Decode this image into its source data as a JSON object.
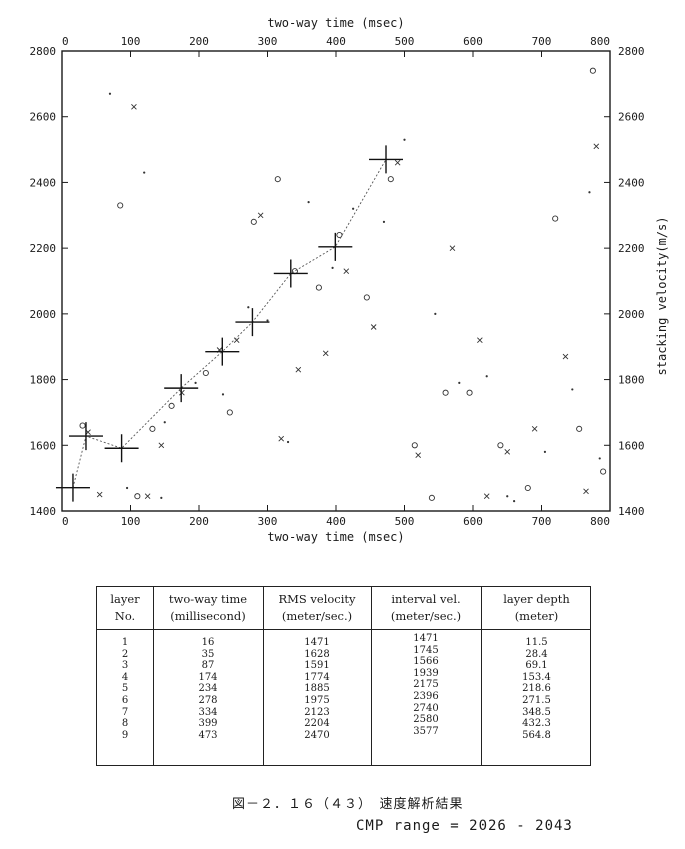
{
  "chart_data": {
    "type": "scatter",
    "xlabel": "two-way time (msec)",
    "ylabel": "stacking velocity(m/s)",
    "xlim": [
      0,
      800
    ],
    "ylim": [
      1400,
      2800
    ],
    "x_ticks": [
      0,
      100,
      200,
      300,
      400,
      500,
      600,
      700,
      800
    ],
    "y_ticks": [
      1400,
      1600,
      1800,
      2000,
      2200,
      2400,
      2600,
      2800
    ],
    "grid": false,
    "picks": {
      "time": [
        16,
        35,
        87,
        174,
        234,
        278,
        334,
        399,
        473
      ],
      "velocity": [
        1471,
        1628,
        1591,
        1774,
        1885,
        1975,
        2123,
        2204,
        2470
      ]
    },
    "semblance_points": [
      [
        30,
        1660
      ],
      [
        38,
        1640
      ],
      [
        70,
        2670
      ],
      [
        85,
        2330
      ],
      [
        105,
        2630
      ],
      [
        120,
        2430
      ],
      [
        132,
        1650
      ],
      [
        145,
        1600
      ],
      [
        150,
        1670
      ],
      [
        160,
        1720
      ],
      [
        175,
        1760
      ],
      [
        195,
        1790
      ],
      [
        210,
        1820
      ],
      [
        230,
        1890
      ],
      [
        235,
        1755
      ],
      [
        245,
        1700
      ],
      [
        255,
        1920
      ],
      [
        272,
        2020
      ],
      [
        280,
        2280
      ],
      [
        290,
        2300
      ],
      [
        300,
        1980
      ],
      [
        315,
        2410
      ],
      [
        320,
        1620
      ],
      [
        330,
        1610
      ],
      [
        340,
        2130
      ],
      [
        345,
        1830
      ],
      [
        360,
        2340
      ],
      [
        375,
        2080
      ],
      [
        385,
        1880
      ],
      [
        395,
        2140
      ],
      [
        405,
        2240
      ],
      [
        415,
        2130
      ],
      [
        425,
        2320
      ],
      [
        445,
        2050
      ],
      [
        455,
        1960
      ],
      [
        470,
        2280
      ],
      [
        480,
        2410
      ],
      [
        490,
        2460
      ],
      [
        500,
        2530
      ],
      [
        515,
        1600
      ],
      [
        520,
        1570
      ],
      [
        545,
        2000
      ],
      [
        560,
        1760
      ],
      [
        570,
        2200
      ],
      [
        580,
        1790
      ],
      [
        595,
        1760
      ],
      [
        610,
        1920
      ],
      [
        620,
        1810
      ],
      [
        640,
        1600
      ],
      [
        650,
        1580
      ],
      [
        660,
        1430
      ],
      [
        680,
        1470
      ],
      [
        690,
        1650
      ],
      [
        705,
        1580
      ],
      [
        720,
        2290
      ],
      [
        735,
        1870
      ],
      [
        745,
        1770
      ],
      [
        755,
        1650
      ],
      [
        765,
        1460
      ],
      [
        770,
        2370
      ],
      [
        775,
        2740
      ],
      [
        780,
        2510
      ],
      [
        785,
        1560
      ],
      [
        790,
        1520
      ],
      [
        55,
        1450
      ],
      [
        95,
        1470
      ],
      [
        110,
        1445
      ],
      [
        125,
        1445
      ],
      [
        145,
        1440
      ],
      [
        540,
        1440
      ],
      [
        620,
        1445
      ],
      [
        650,
        1445
      ]
    ]
  },
  "table": {
    "headers": [
      [
        "layer",
        "No."
      ],
      [
        "two-way time",
        "(millisecond)"
      ],
      [
        "RMS velocity",
        "(meter/sec.)"
      ],
      [
        "interval vel.",
        "(meter/sec.)"
      ],
      [
        "layer depth",
        "(meter)"
      ]
    ],
    "layer_no": [
      "1",
      "2",
      "3",
      "4",
      "5",
      "6",
      "7",
      "8",
      "9"
    ],
    "two_way_time": [
      "16",
      "35",
      "87",
      "174",
      "234",
      "278",
      "334",
      "399",
      "473"
    ],
    "rms_velocity": [
      "1471",
      "1628",
      "1591",
      "1774",
      "1885",
      "1975",
      "2123",
      "2204",
      "2470"
    ],
    "interval_vel": [
      "1471",
      "1745",
      "1566",
      "1939",
      "2175",
      "2396",
      "2740",
      "2580",
      "3577"
    ],
    "layer_depth": [
      "11.5",
      "28.4",
      "69.1",
      "153.4",
      "218.6",
      "271.5",
      "348.5",
      "432.3",
      "564.8"
    ]
  },
  "caption": {
    "figure": "図－２．１６（４３）　速度解析結果",
    "cmp_range": "CMP range = 2026 - 2043"
  }
}
